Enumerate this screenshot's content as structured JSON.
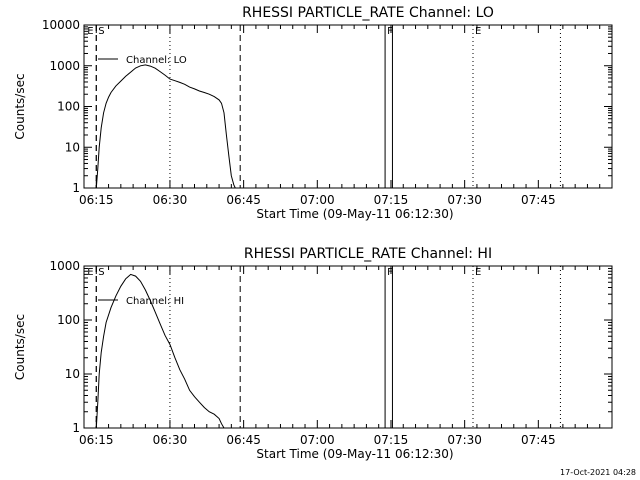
{
  "chart_data": [
    {
      "type": "line",
      "title": "RHESSI PARTICLE_RATE Channel: LO",
      "xlabel": "Start Time (09-May-11 06:12:30)",
      "ylabel": "Counts/sec",
      "x_tick_labels": [
        "06:15",
        "06:30",
        "06:45",
        "07:00",
        "07:15",
        "07:30",
        "07:45"
      ],
      "x_ticks_min": [
        15,
        30,
        45,
        60,
        75,
        90,
        105
      ],
      "xlim_min": [
        12.5,
        120.0
      ],
      "y_scale": "log",
      "ylim": [
        1,
        10000
      ],
      "y_tick_labels": [
        "1",
        "10",
        "100",
        "1000",
        "10000"
      ],
      "y_ticks": [
        1,
        10,
        100,
        1000,
        10000
      ],
      "legend": {
        "label": "Channel: LO",
        "placement": "top-left"
      },
      "markers": [
        {
          "label": "E",
          "x_min": 15.0,
          "style": "dashed"
        },
        {
          "label": "S",
          "x_min": 15.0,
          "style": "dashed"
        },
        {
          "label": "",
          "x_min": 44.3,
          "style": "dashed"
        },
        {
          "label": "",
          "x_min": 30.0,
          "style": "dotted"
        },
        {
          "label": "F",
          "x_min": 73.8,
          "style": "solid"
        },
        {
          "label": "",
          "x_min": 75.3,
          "style": "solid"
        },
        {
          "label": "E",
          "x_min": 91.7,
          "style": "dotted"
        },
        {
          "label": "",
          "x_min": 109.5,
          "style": "dotted"
        }
      ],
      "series": [
        {
          "x_min": [
            15.0,
            15.3,
            15.6,
            16.0,
            16.5,
            17.0,
            17.5,
            18.0,
            19.0,
            20.0,
            21.0,
            22.0,
            23.0,
            24.0,
            25.0,
            26.0,
            27.0,
            28.0,
            29.0,
            30.0,
            31.0,
            32.0,
            33.0,
            34.0,
            35.0,
            36.0,
            37.0,
            38.0,
            39.0,
            40.0,
            40.5,
            41.0,
            41.5,
            42.0,
            42.5,
            43.0,
            43.3
          ],
          "values": [
            1,
            3,
            10,
            30,
            70,
            120,
            170,
            220,
            320,
            420,
            550,
            700,
            880,
            1000,
            1050,
            980,
            870,
            720,
            590,
            470,
            430,
            390,
            350,
            300,
            270,
            240,
            220,
            200,
            175,
            145,
            120,
            70,
            20,
            6,
            2,
            1.2,
            1
          ]
        }
      ]
    },
    {
      "type": "line",
      "title": "RHESSI PARTICLE_RATE Channel: HI",
      "xlabel": "Start Time (09-May-11 06:12:30)",
      "ylabel": "Counts/sec",
      "x_tick_labels": [
        "06:15",
        "06:30",
        "06:45",
        "07:00",
        "07:15",
        "07:30",
        "07:45"
      ],
      "x_ticks_min": [
        15,
        30,
        45,
        60,
        75,
        90,
        105
      ],
      "xlim_min": [
        12.5,
        120.0
      ],
      "y_scale": "log",
      "ylim": [
        1,
        1000
      ],
      "y_tick_labels": [
        "1",
        "10",
        "100",
        "1000"
      ],
      "y_ticks": [
        1,
        10,
        100,
        1000
      ],
      "legend": {
        "label": "Channel: HI",
        "placement": "top-left"
      },
      "markers": [
        {
          "label": "E",
          "x_min": 15.0,
          "style": "dashed"
        },
        {
          "label": "S",
          "x_min": 15.0,
          "style": "dashed"
        },
        {
          "label": "",
          "x_min": 44.3,
          "style": "dashed"
        },
        {
          "label": "",
          "x_min": 30.0,
          "style": "dotted"
        },
        {
          "label": "F",
          "x_min": 73.8,
          "style": "solid"
        },
        {
          "label": "",
          "x_min": 75.3,
          "style": "solid"
        },
        {
          "label": "E",
          "x_min": 91.7,
          "style": "dotted"
        },
        {
          "label": "",
          "x_min": 109.5,
          "style": "dotted"
        }
      ],
      "series": [
        {
          "x_min": [
            15.0,
            15.3,
            15.6,
            16.0,
            16.5,
            17.0,
            18.0,
            19.0,
            20.0,
            21.0,
            22.0,
            23.0,
            24.0,
            25.0,
            26.0,
            27.0,
            28.0,
            29.0,
            30.0,
            31.0,
            32.0,
            33.0,
            34.0,
            35.0,
            36.0,
            37.0,
            38.0,
            39.0,
            40.0,
            40.5,
            41.0
          ],
          "values": [
            1,
            3,
            10,
            25,
            50,
            90,
            170,
            280,
            420,
            580,
            700,
            650,
            520,
            360,
            230,
            140,
            85,
            52,
            35,
            20,
            12,
            8,
            5,
            3.8,
            3,
            2.4,
            2,
            1.8,
            1.5,
            1.2,
            1
          ]
        }
      ]
    }
  ],
  "footer": {
    "timestamp": "17-Oct-2021 04:28"
  }
}
